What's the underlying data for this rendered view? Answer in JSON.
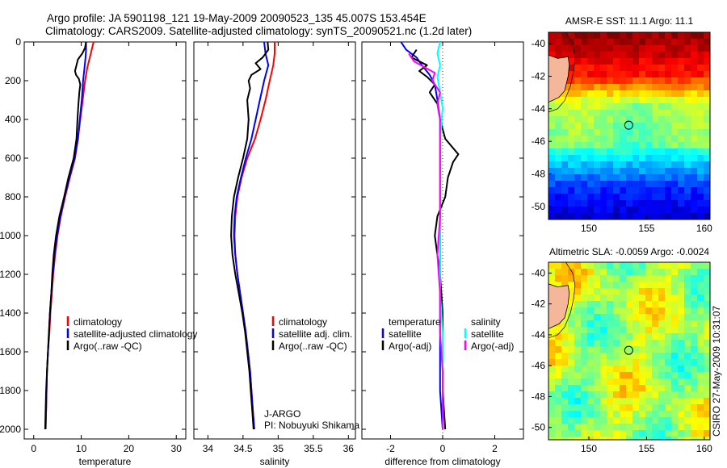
{
  "figure": {
    "title_line1": "Argo profile: JA 5901198_121 19-May-2009 20090523_135 45.007S 153.454E",
    "title_line2": "Climatology: CARS2009. Satellite-adjusted climatology: synTS_20090521.nc (1.2d later)",
    "side_label": "CSIRO 27-May-2009 10:31:07"
  },
  "colors": {
    "climatology": "#ff0000",
    "satellite": "#0000ff",
    "argo": "#000000",
    "salinity_satellite": "#00ffff",
    "salinity_argo": "#ff00ff",
    "land": "#f4b79a"
  },
  "chart_data": [
    {
      "id": "temperature",
      "type": "line",
      "xlabel": "temperature",
      "ylabel": "",
      "xlim": [
        -2,
        32
      ],
      "ylim": [
        2050,
        0
      ],
      "xticks": [
        0,
        10,
        20,
        30
      ],
      "yticks": [
        0,
        200,
        400,
        600,
        800,
        1000,
        1200,
        1400,
        1600,
        1800,
        2000
      ],
      "legend": [
        "climatology",
        "satellite-adjusted climatology",
        "Argo(..raw -QC)"
      ],
      "series": [
        {
          "name": "climatology",
          "color": "#ff0000",
          "points": [
            [
              12.6,
              0
            ],
            [
              12.2,
              40
            ],
            [
              11.8,
              80
            ],
            [
              11.3,
              130
            ],
            [
              10.8,
              200
            ],
            [
              10.3,
              300
            ],
            [
              9.8,
              400
            ],
            [
              9.3,
              500
            ],
            [
              8.7,
              600
            ],
            [
              7.6,
              700
            ],
            [
              6.6,
              800
            ],
            [
              5.7,
              900
            ],
            [
              5.0,
              1000
            ],
            [
              4.5,
              1100
            ],
            [
              4.1,
              1200
            ],
            [
              3.8,
              1300
            ],
            [
              3.5,
              1400
            ],
            [
              3.3,
              1500
            ],
            [
              3.0,
              1600
            ],
            [
              2.8,
              1700
            ],
            [
              2.7,
              1800
            ],
            [
              2.6,
              1900
            ],
            [
              2.5,
              2000
            ]
          ]
        },
        {
          "name": "satellite-adjusted climatology",
          "color": "#0000ff",
          "points": [
            [
              11.0,
              0
            ],
            [
              11.0,
              40
            ],
            [
              10.9,
              80
            ],
            [
              10.7,
              130
            ],
            [
              10.4,
              200
            ],
            [
              10.1,
              300
            ],
            [
              9.7,
              400
            ],
            [
              9.3,
              500
            ],
            [
              8.6,
              600
            ],
            [
              7.5,
              700
            ],
            [
              6.5,
              800
            ],
            [
              5.6,
              900
            ],
            [
              4.9,
              1000
            ],
            [
              4.4,
              1100
            ],
            [
              4.0,
              1200
            ],
            [
              3.7,
              1300
            ],
            [
              3.4,
              1400
            ],
            [
              3.2,
              1500
            ],
            [
              3.0,
              1600
            ],
            [
              2.8,
              1700
            ],
            [
              2.7,
              1800
            ],
            [
              2.6,
              1900
            ],
            [
              2.5,
              2000
            ]
          ]
        },
        {
          "name": "Argo(..raw -QC)",
          "color": "#000000",
          "points": [
            [
              11.0,
              0
            ],
            [
              10.8,
              30
            ],
            [
              10.2,
              60
            ],
            [
              9.3,
              90
            ],
            [
              9.0,
              120
            ],
            [
              8.7,
              150
            ],
            [
              8.9,
              170
            ],
            [
              9.5,
              190
            ],
            [
              9.8,
              220
            ],
            [
              9.6,
              260
            ],
            [
              9.4,
              320
            ],
            [
              9.2,
              400
            ],
            [
              9.0,
              500
            ],
            [
              8.4,
              600
            ],
            [
              7.3,
              700
            ],
            [
              6.4,
              800
            ],
            [
              5.4,
              900
            ],
            [
              4.7,
              1000
            ],
            [
              4.2,
              1100
            ],
            [
              3.9,
              1200
            ],
            [
              3.7,
              1300
            ],
            [
              3.4,
              1400
            ],
            [
              3.2,
              1500
            ],
            [
              3.0,
              1600
            ],
            [
              2.8,
              1700
            ],
            [
              2.6,
              1800
            ],
            [
              2.5,
              1900
            ],
            [
              2.4,
              2000
            ]
          ]
        }
      ]
    },
    {
      "id": "salinity",
      "type": "line",
      "xlabel": "salinity",
      "ylabel": "",
      "xlim": [
        33.8,
        36.1
      ],
      "ylim": [
        2050,
        0
      ],
      "xticks": [
        34,
        34.5,
        35,
        35.5,
        36
      ],
      "xtick_labels": [
        "34",
        "34.5",
        "35",
        "35.5",
        "36"
      ],
      "legend": [
        "climatology",
        "satellite adj. clim.",
        "Argo(..raw -QC)"
      ],
      "annotation_line1": "J-ARGO",
      "annotation_line2": "PI: Nobuyuki Shikama",
      "series": [
        {
          "name": "climatology",
          "color": "#ff0000",
          "points": [
            [
              34.95,
              0
            ],
            [
              34.95,
              60
            ],
            [
              34.93,
              120
            ],
            [
              34.88,
              200
            ],
            [
              34.82,
              300
            ],
            [
              34.75,
              400
            ],
            [
              34.67,
              500
            ],
            [
              34.56,
              600
            ],
            [
              34.48,
              700
            ],
            [
              34.42,
              800
            ],
            [
              34.39,
              900
            ],
            [
              34.38,
              1000
            ],
            [
              34.39,
              1100
            ],
            [
              34.42,
              1200
            ],
            [
              34.46,
              1300
            ],
            [
              34.5,
              1400
            ],
            [
              34.54,
              1500
            ],
            [
              34.57,
              1600
            ],
            [
              34.6,
              1700
            ],
            [
              34.62,
              1800
            ],
            [
              34.64,
              1900
            ],
            [
              34.66,
              2000
            ]
          ]
        },
        {
          "name": "satellite adj. clim.",
          "color": "#0000ff",
          "points": [
            [
              34.8,
              0
            ],
            [
              34.82,
              60
            ],
            [
              34.86,
              120
            ],
            [
              34.8,
              200
            ],
            [
              34.74,
              300
            ],
            [
              34.68,
              400
            ],
            [
              34.62,
              500
            ],
            [
              34.54,
              600
            ],
            [
              34.47,
              700
            ],
            [
              34.41,
              800
            ],
            [
              34.38,
              900
            ],
            [
              34.37,
              1000
            ],
            [
              34.39,
              1100
            ],
            [
              34.42,
              1200
            ],
            [
              34.46,
              1300
            ],
            [
              34.5,
              1400
            ],
            [
              34.54,
              1500
            ],
            [
              34.57,
              1600
            ],
            [
              34.6,
              1700
            ],
            [
              34.62,
              1800
            ],
            [
              34.64,
              1900
            ],
            [
              34.66,
              2000
            ]
          ]
        },
        {
          "name": "Argo(..raw -QC)",
          "color": "#000000",
          "points": [
            [
              34.85,
              0
            ],
            [
              34.86,
              40
            ],
            [
              34.78,
              80
            ],
            [
              34.68,
              110
            ],
            [
              34.75,
              140
            ],
            [
              34.62,
              170
            ],
            [
              34.58,
              200
            ],
            [
              34.6,
              240
            ],
            [
              34.56,
              300
            ],
            [
              34.58,
              400
            ],
            [
              34.56,
              500
            ],
            [
              34.5,
              600
            ],
            [
              34.43,
              700
            ],
            [
              34.37,
              800
            ],
            [
              34.34,
              900
            ],
            [
              34.33,
              1000
            ],
            [
              34.35,
              1100
            ],
            [
              34.39,
              1200
            ],
            [
              34.44,
              1300
            ],
            [
              34.49,
              1400
            ],
            [
              34.53,
              1500
            ],
            [
              34.56,
              1600
            ],
            [
              34.59,
              1700
            ],
            [
              34.61,
              1800
            ],
            [
              34.63,
              1900
            ],
            [
              34.65,
              2000
            ]
          ]
        }
      ]
    },
    {
      "id": "difference",
      "type": "line",
      "xlabel": "difference from climatology",
      "ylabel": "",
      "xlim": [
        -3.1,
        3.1
      ],
      "ylim": [
        2050,
        0
      ],
      "xticks": [
        -2,
        0,
        2
      ],
      "legend_group1_title": "temperature",
      "legend_group2_title": "salinity",
      "legend": [
        "satellite",
        "Argo(-adj)",
        "satellite",
        "Argo(-adj)"
      ],
      "series": [
        {
          "name": "satellite",
          "color": "#0000ff",
          "points": [
            [
              -1.6,
              0
            ],
            [
              -1.4,
              40
            ],
            [
              -1.0,
              80
            ],
            [
              -0.8,
              120
            ],
            [
              -0.5,
              170
            ],
            [
              -0.3,
              220
            ],
            [
              -0.2,
              300
            ],
            [
              -0.1,
              400
            ],
            [
              -0.1,
              500
            ],
            [
              -0.1,
              600
            ],
            [
              -0.1,
              700
            ],
            [
              -0.1,
              800
            ],
            [
              -0.1,
              900
            ],
            [
              -0.1,
              1000
            ],
            [
              -0.1,
              1200
            ],
            [
              -0.1,
              1400
            ],
            [
              -0.1,
              1600
            ],
            [
              -0.1,
              1800
            ],
            [
              0.0,
              2000
            ]
          ]
        },
        {
          "name": "Argo(-adj)",
          "color": "#000000",
          "points": [
            [
              -1.0,
              40
            ],
            [
              -1.2,
              80
            ],
            [
              -0.6,
              120
            ],
            [
              -0.9,
              150
            ],
            [
              -0.6,
              180
            ],
            [
              -0.3,
              220
            ],
            [
              -0.5,
              260
            ],
            [
              -0.2,
              320
            ],
            [
              -0.1,
              400
            ],
            [
              0.1,
              500
            ],
            [
              0.6,
              580
            ],
            [
              0.4,
              620
            ],
            [
              0.2,
              700
            ],
            [
              0.1,
              800
            ],
            [
              -0.2,
              900
            ],
            [
              -0.3,
              1000
            ],
            [
              -0.2,
              1100
            ],
            [
              -0.1,
              1200
            ],
            [
              0.0,
              1400
            ],
            [
              0.0,
              1600
            ],
            [
              0.0,
              1800
            ],
            [
              0.1,
              2000
            ]
          ]
        },
        {
          "name": "satellite",
          "color": "#00ffff",
          "points": [
            [
              -0.1,
              0
            ],
            [
              -0.2,
              60
            ],
            [
              -0.1,
              120
            ],
            [
              -0.2,
              180
            ],
            [
              -0.1,
              260
            ],
            [
              0.0,
              340
            ],
            [
              -0.1,
              500
            ],
            [
              -0.1,
              700
            ],
            [
              -0.1,
              900
            ],
            [
              -0.1,
              1100
            ],
            [
              -0.1,
              1300
            ],
            [
              0.0,
              1500
            ],
            [
              0.0,
              1700
            ],
            [
              0.0,
              1900
            ],
            [
              0.0,
              2000
            ]
          ]
        },
        {
          "name": "Argo(-adj)",
          "color": "#ff00ff",
          "points": [
            [
              -1.3,
              60
            ],
            [
              -1.1,
              100
            ],
            [
              -0.7,
              130
            ],
            [
              -0.3,
              160
            ],
            [
              -0.4,
              200
            ],
            [
              -0.1,
              260
            ],
            [
              -0.2,
              320
            ],
            [
              -0.1,
              400
            ],
            [
              -0.1,
              500
            ],
            [
              -0.1,
              700
            ],
            [
              -0.1,
              900
            ],
            [
              -0.2,
              1100
            ],
            [
              -0.1,
              1300
            ],
            [
              -0.1,
              1500
            ],
            [
              0.0,
              1700
            ],
            [
              0.0,
              1900
            ],
            [
              0.0,
              2000
            ]
          ]
        }
      ]
    },
    {
      "id": "sst_map",
      "type": "heatmap",
      "title": "AMSR-E SST: 11.1  Argo: 11.1",
      "xlim": [
        146.5,
        160.5
      ],
      "ylim": [
        -50.8,
        -39.3
      ],
      "xticks": [
        150,
        155,
        160
      ],
      "yticks": [
        -40,
        -42,
        -44,
        -46,
        -48,
        -50
      ],
      "marker": {
        "lon": 153.454,
        "lat": -45.007
      }
    },
    {
      "id": "sla_map",
      "type": "heatmap",
      "title": "Altimetric SLA: -0.0059  Argo: -0.0024",
      "xlim": [
        146.5,
        160.5
      ],
      "ylim": [
        -50.8,
        -39.3
      ],
      "xticks": [
        150,
        155,
        160
      ],
      "yticks": [
        -40,
        -42,
        -44,
        -46,
        -48,
        -50
      ],
      "marker": {
        "lon": 153.454,
        "lat": -45.007
      }
    }
  ]
}
